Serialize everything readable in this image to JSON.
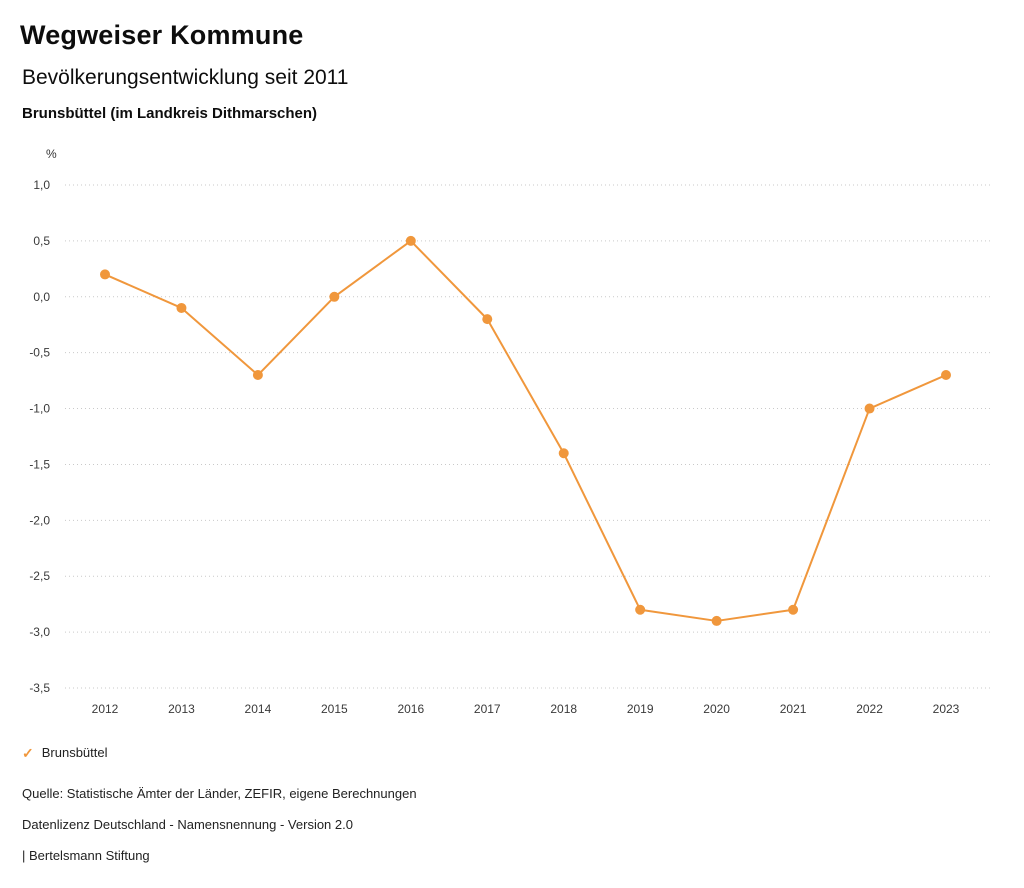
{
  "header": {
    "title": "Wegweiser Kommune",
    "subtitle": "Bevölkerungsentwicklung seit 2011",
    "region": "Brunsbüttel (im Landkreis Dithmarschen)"
  },
  "chart_data": {
    "type": "line",
    "title": "Bevölkerungsentwicklung seit 2011",
    "unit_label": "%",
    "x": [
      "2012",
      "2013",
      "2014",
      "2015",
      "2016",
      "2017",
      "2018",
      "2019",
      "2020",
      "2021",
      "2022",
      "2023"
    ],
    "series": [
      {
        "name": "Brunsbüttel",
        "color": "#F0973C",
        "values": [
          0.2,
          -0.1,
          -0.7,
          0.0,
          0.5,
          -0.2,
          -1.4,
          -2.8,
          -2.9,
          -2.8,
          -1.0,
          -0.7
        ]
      }
    ],
    "ylim": [
      -3.5,
      1.0
    ],
    "ytick_step": 0.5,
    "ytick_labels": [
      "1,0",
      "0,5",
      "0,0",
      "-0,5",
      "-1,0",
      "-1,5",
      "-2,0",
      "-2,5",
      "-3,0",
      "-3,5"
    ],
    "grid": "dotted-horizontal",
    "legend_position": "bottom-left"
  },
  "legend": {
    "items": [
      {
        "label": "Brunsbüttel",
        "marker": "check",
        "color": "#F0973C"
      }
    ]
  },
  "footer": {
    "source": "Quelle: Statistische Ämter der Länder, ZEFIR, eigene Berechnungen",
    "license": "Datenlizenz Deutschland - Namensnennung - Version 2.0",
    "attribution": "| Bertelsmann Stiftung"
  }
}
